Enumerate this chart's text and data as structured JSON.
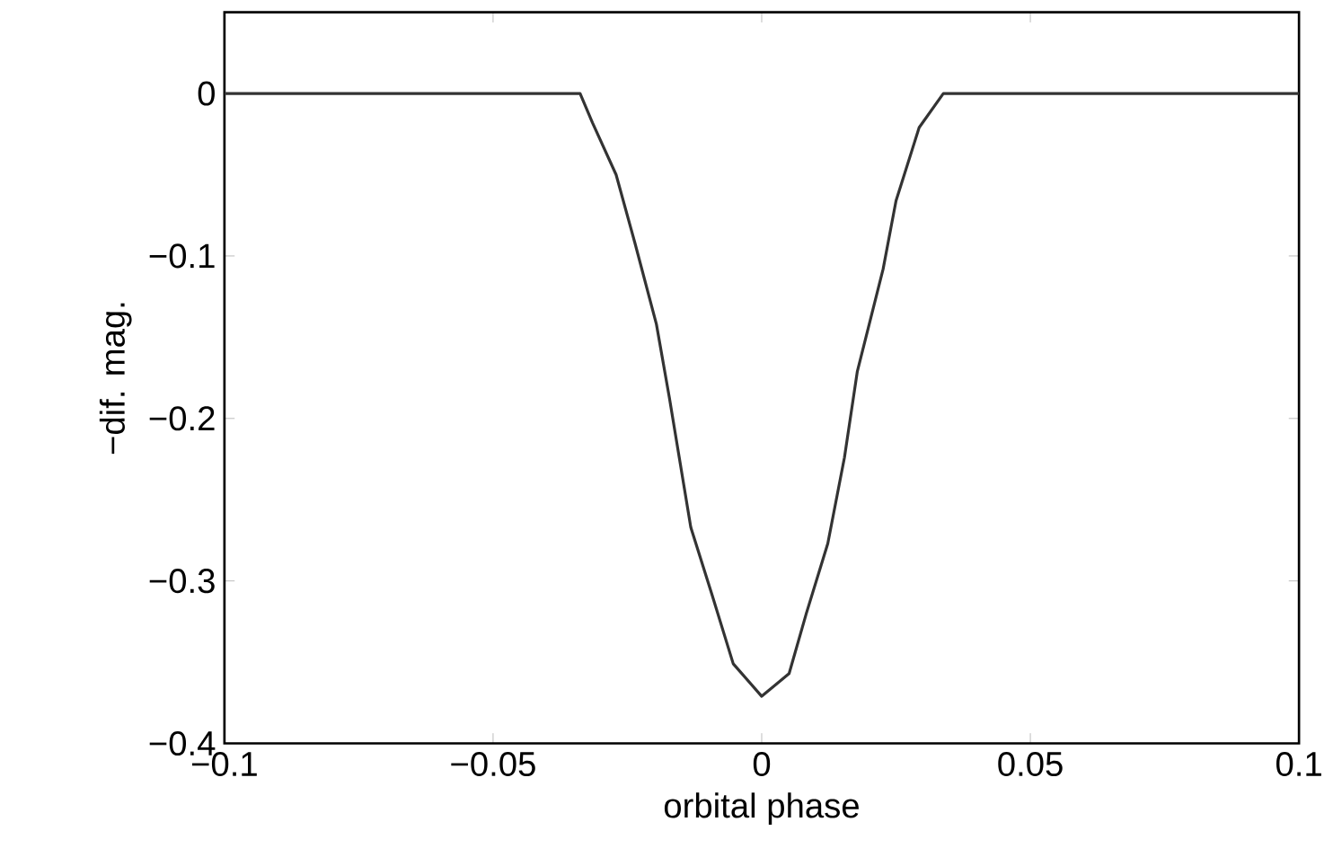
{
  "chart_data": {
    "type": "line",
    "xlabel": "orbital phase",
    "ylabel": "−dif. mag.",
    "x": [
      -0.1,
      -0.0338,
      -0.0315,
      -0.0271,
      -0.0236,
      -0.0196,
      -0.0172,
      -0.0132,
      -0.0092,
      -0.0053,
      0,
      0.0051,
      0.0083,
      0.0123,
      0.0154,
      0.0178,
      0.0226,
      0.025,
      0.0293,
      0.0338,
      0.1
    ],
    "series": [
      {
        "color": "#333333",
        "values": [
          0,
          0,
          -0.018,
          -0.05,
          -0.092,
          -0.142,
          -0.187,
          -0.267,
          -0.309,
          -0.351,
          -0.371,
          -0.357,
          -0.32,
          -0.277,
          -0.224,
          -0.171,
          -0.108,
          -0.066,
          -0.021,
          0,
          0
        ]
      }
    ],
    "xlim": [
      -0.1,
      0.1
    ],
    "ylim": [
      -0.4,
      0.05
    ],
    "xticks": [
      {
        "value": -0.1,
        "label": "−0.1"
      },
      {
        "value": -0.05,
        "label": "−0.05"
      },
      0,
      0.05,
      0.1
    ],
    "yticks": [
      {
        "value": -0.4,
        "label": "−0.4"
      },
      {
        "value": -0.3,
        "label": "−0.3"
      },
      {
        "value": -0.2,
        "label": "−0.2"
      },
      {
        "value": -0.1,
        "label": "−0.1"
      },
      0
    ],
    "grid": false,
    "marker": "none",
    "line_style": "solid"
  }
}
